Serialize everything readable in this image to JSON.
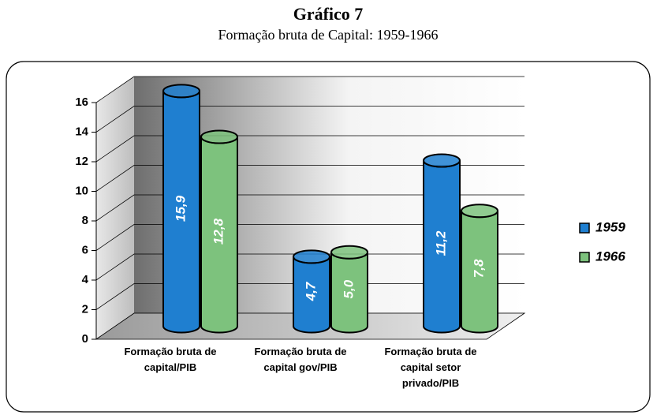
{
  "chart_data": {
    "type": "bar",
    "title": "Gráfico 7",
    "subtitle": "Formação bruta de Capital: 1959-1966",
    "categories": [
      "Formação bruta de\ncapital/PIB",
      "Formação bruta de\ncapital gov/PIB",
      "Formação bruta de\ncapital setor\nprivado/PIB"
    ],
    "series": [
      {
        "name": "1959",
        "color": "#1f7fd0",
        "values": [
          15.9,
          4.7,
          11.2
        ],
        "value_labels": [
          "15,9",
          "4,7",
          "11,2"
        ]
      },
      {
        "name": "1966",
        "color": "#7dc27d",
        "values": [
          12.8,
          5.0,
          7.8
        ],
        "value_labels": [
          "12,8",
          "5,0",
          "7,8"
        ]
      }
    ],
    "ylim": [
      0,
      16
    ],
    "yticks": [
      0,
      2,
      4,
      6,
      8,
      10,
      12,
      14,
      16
    ],
    "grid": true,
    "legend": "right"
  }
}
